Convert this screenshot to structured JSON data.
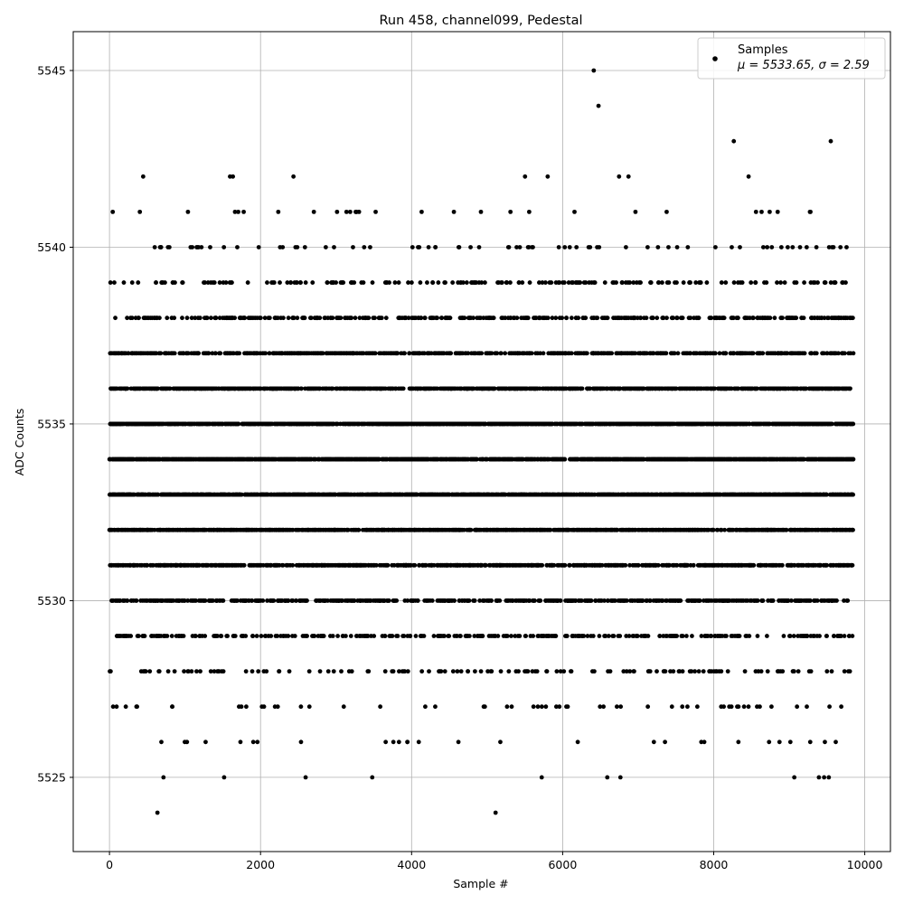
{
  "chart_data": {
    "type": "scatter",
    "title": "Run 458, channel099, Pedestal",
    "xlabel": "Sample #",
    "ylabel": "ADC Counts",
    "xlim": [
      -480,
      10340
    ],
    "ylim": [
      5522.9,
      5546.1
    ],
    "xticks": [
      0,
      2000,
      4000,
      6000,
      8000,
      10000
    ],
    "yticks": [
      5525,
      5530,
      5535,
      5540,
      5545
    ],
    "grid": true,
    "legend_position": "top-right",
    "marker_color": "#000000",
    "sample_count": 9850,
    "mean": 5533.65,
    "sigma": 2.59,
    "series": [
      {
        "name": "Samples",
        "stats_label": "μ = 5533.65, σ = 2.59"
      }
    ]
  }
}
